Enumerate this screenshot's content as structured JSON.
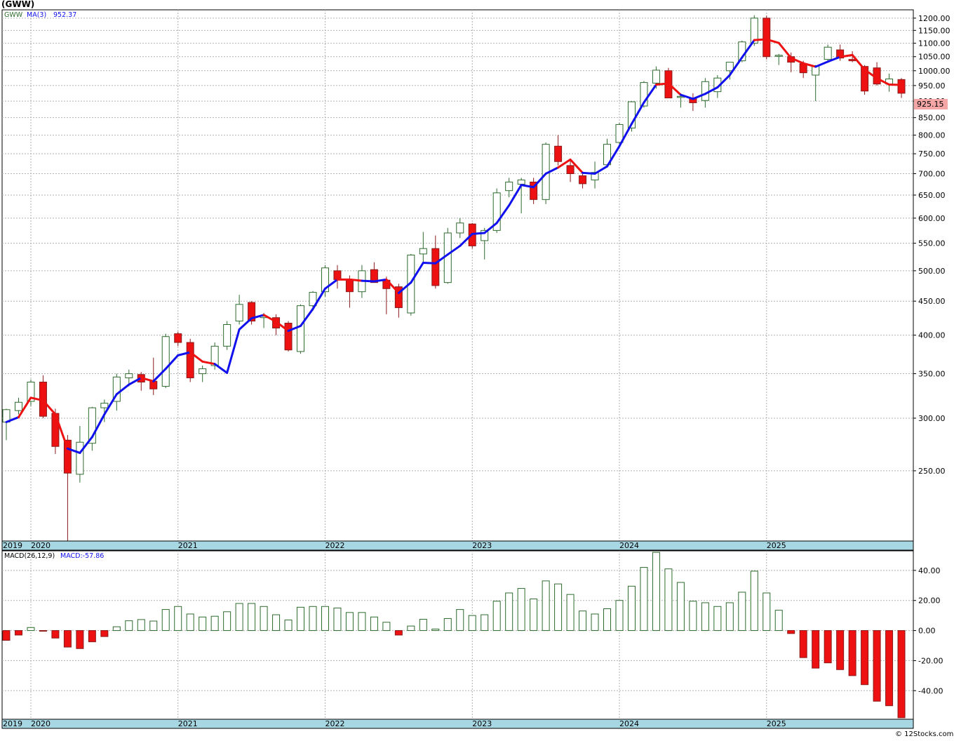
{
  "title": "(GWW)",
  "credit": "© 12Stocks.com",
  "price_legend": {
    "symbol": "GWW",
    "ma_label": "MA(3)",
    "ma_value": "952.37"
  },
  "macd_legend": {
    "label": "MACD(26,12,9)",
    "value_label": "MACD:-57.86"
  },
  "last_price_tag": "925.15",
  "colors": {
    "up_candle": "#ffffff",
    "up_border": "#2e6b2e",
    "down_candle": "#ee1111",
    "ma_up": "#1111ee",
    "ma_down": "#ee1111",
    "axis_band": "#a7d7e3",
    "macd_pos_border": "#2e6b2e",
    "macd_neg": "#ee1111",
    "last_tag_bg": "#f4a6a6"
  },
  "chart_data": [
    {
      "type": "candlestick",
      "period": "monthly",
      "title": "(GWW)",
      "y_scale": "log",
      "ylim": [
        196,
        1235
      ],
      "y_ticks": [
        250,
        300,
        350,
        400,
        450,
        500,
        550,
        600,
        650,
        700,
        750,
        800,
        850,
        900,
        950,
        1000,
        1050,
        1100,
        1150,
        1200
      ],
      "y_tick_labels": [
        "250.00",
        "300.00",
        "350.00",
        "400.00",
        "450.00",
        "500.00",
        "550.00",
        "600.00",
        "650.00",
        "700.00",
        "750.00",
        "800.00",
        "850.00",
        "900.00",
        "950.00",
        "1000.00",
        "1050.00",
        "1100.00",
        "1150.00",
        "1200.00"
      ],
      "x_labels": [
        "2019",
        "2020",
        "2021",
        "2022",
        "2023",
        "2024",
        "2025"
      ],
      "start_month": "2019-11",
      "candles": [
        [
          296,
          310,
          278,
          309
        ],
        [
          308,
          322,
          304,
          317
        ],
        [
          318,
          343,
          313,
          340
        ],
        [
          340,
          348,
          300,
          302
        ],
        [
          305,
          310,
          265,
          272
        ],
        [
          278,
          283,
          196,
          248
        ],
        [
          247,
          292,
          240,
          276
        ],
        [
          275,
          312,
          268,
          311
        ],
        [
          311,
          320,
          296,
          316
        ],
        [
          318,
          350,
          308,
          346
        ],
        [
          345,
          355,
          335,
          350
        ],
        [
          349,
          352,
          330,
          340
        ],
        [
          341,
          370,
          325,
          332
        ],
        [
          335,
          402,
          333,
          398
        ],
        [
          402,
          405,
          385,
          390
        ],
        [
          390,
          395,
          340,
          345
        ],
        [
          350,
          360,
          340,
          356
        ],
        [
          360,
          390,
          355,
          385
        ],
        [
          385,
          420,
          380,
          415
        ],
        [
          420,
          460,
          415,
          445
        ],
        [
          448,
          450,
          415,
          420
        ],
        [
          425,
          432,
          410,
          427
        ],
        [
          425,
          430,
          400,
          410
        ],
        [
          417,
          420,
          378,
          380
        ],
        [
          378,
          445,
          375,
          443
        ],
        [
          443,
          466,
          435,
          464
        ],
        [
          465,
          510,
          457,
          505
        ],
        [
          500,
          510,
          470,
          485
        ],
        [
          485,
          492,
          440,
          465
        ],
        [
          465,
          510,
          455,
          500
        ],
        [
          502,
          515,
          485,
          480
        ],
        [
          484,
          490,
          430,
          470
        ],
        [
          473,
          478,
          425,
          440
        ],
        [
          432,
          530,
          428,
          528
        ],
        [
          530,
          572,
          515,
          540
        ],
        [
          540,
          565,
          470,
          475
        ],
        [
          480,
          580,
          478,
          570
        ],
        [
          570,
          600,
          560,
          590
        ],
        [
          588,
          590,
          540,
          545
        ],
        [
          555,
          580,
          520,
          575
        ],
        [
          575,
          665,
          570,
          655
        ],
        [
          660,
          690,
          645,
          680
        ],
        [
          675,
          690,
          610,
          685
        ],
        [
          680,
          690,
          630,
          640
        ],
        [
          640,
          780,
          630,
          775
        ],
        [
          770,
          800,
          720,
          730
        ],
        [
          720,
          735,
          680,
          700
        ],
        [
          695,
          700,
          665,
          676
        ],
        [
          685,
          730,
          665,
          703
        ],
        [
          722,
          790,
          715,
          775
        ],
        [
          780,
          835,
          775,
          830
        ],
        [
          820,
          900,
          810,
          898
        ],
        [
          885,
          965,
          880,
          960
        ],
        [
          958,
          1015,
          940,
          1002
        ],
        [
          1000,
          1010,
          915,
          910
        ],
        [
          915,
          925,
          880,
          915
        ],
        [
          910,
          925,
          870,
          895
        ],
        [
          902,
          975,
          880,
          963
        ],
        [
          930,
          985,
          910,
          975
        ],
        [
          1000,
          1030,
          970,
          1030
        ],
        [
          1035,
          1110,
          1030,
          1105
        ],
        [
          1100,
          1212,
          1090,
          1200
        ],
        [
          1200,
          1210,
          1040,
          1050
        ],
        [
          1055,
          1060,
          1020,
          1055
        ],
        [
          1050,
          1065,
          995,
          1030
        ],
        [
          1025,
          1035,
          975,
          993
        ],
        [
          985,
          1020,
          900,
          1018
        ],
        [
          1040,
          1095,
          1030,
          1085
        ],
        [
          1075,
          1095,
          1035,
          1045
        ],
        [
          1040,
          1070,
          1030,
          1035
        ],
        [
          1015,
          1020,
          920,
          932
        ],
        [
          1010,
          1030,
          950,
          955
        ],
        [
          955,
          990,
          930,
          972
        ],
        [
          970,
          975,
          910,
          925
        ]
      ],
      "ma3": [
        296,
        301,
        322,
        319,
        304,
        270,
        266,
        281,
        304,
        326,
        337,
        345,
        341,
        356,
        373,
        377,
        365,
        362,
        351,
        408,
        424,
        429,
        419,
        406,
        413,
        438,
        470,
        485,
        485,
        483,
        482,
        485,
        463,
        480,
        514,
        513,
        529,
        545,
        568,
        570,
        590,
        627,
        673,
        668,
        700,
        715,
        735,
        702,
        700,
        718,
        770,
        832,
        896,
        953,
        957,
        920,
        907,
        923,
        944,
        985,
        1047,
        1112,
        1115,
        1101,
        1045,
        1026,
        1014,
        1032,
        1049,
        1056,
        1004,
        974,
        953,
        952
      ],
      "ma_color_by_point": [
        "blue",
        "blue",
        "red",
        "red",
        "red",
        "red",
        "blue",
        "blue",
        "blue",
        "blue",
        "blue",
        "blue",
        "red",
        "blue",
        "blue",
        "blue",
        "red",
        "red",
        "blue",
        "blue",
        "blue",
        "blue",
        "red",
        "red",
        "blue",
        "blue",
        "blue",
        "blue",
        "red",
        "red",
        "blue",
        "blue",
        "red",
        "blue",
        "blue",
        "blue",
        "blue",
        "blue",
        "blue",
        "blue",
        "blue",
        "blue",
        "blue",
        "blue",
        "blue",
        "blue",
        "red",
        "red",
        "blue",
        "blue",
        "blue",
        "blue",
        "blue",
        "blue",
        "red",
        "red",
        "blue",
        "blue",
        "blue",
        "blue",
        "blue",
        "blue",
        "red",
        "red",
        "red",
        "red",
        "red",
        "blue",
        "blue",
        "red",
        "red",
        "red",
        "red",
        "red"
      ]
    },
    {
      "type": "bar",
      "title": "MACD(26,12,9)",
      "ylim": [
        -59,
        53
      ],
      "y_ticks": [
        -40,
        -20,
        0,
        20,
        40
      ],
      "y_tick_labels": [
        "-40.00",
        "-20.00",
        "0.00",
        "20.00",
        "40.00"
      ],
      "x_labels": [
        "2019",
        "2020",
        "2021",
        "2022",
        "2023",
        "2024",
        "2025"
      ],
      "values": [
        -6.5,
        -3,
        2,
        -0.3,
        -5,
        -11,
        -12,
        -7.5,
        -4,
        2.5,
        6.5,
        7.3,
        6.3,
        14,
        16,
        11,
        9,
        9.5,
        12.5,
        18,
        18,
        16,
        10.5,
        7,
        15.5,
        16,
        16,
        15,
        12,
        12,
        9,
        5.5,
        -3,
        3,
        7.5,
        1,
        8,
        14,
        10,
        10.5,
        19.5,
        25,
        28,
        21,
        33,
        31,
        24,
        13,
        11,
        14.5,
        20,
        29.5,
        42,
        52,
        41,
        32,
        19.5,
        18.5,
        16,
        18.5,
        25.5,
        39.5,
        25,
        13.5,
        -2,
        -18,
        -25,
        -21.5,
        -26,
        -30,
        -36,
        -47,
        -50,
        -58
      ]
    }
  ]
}
